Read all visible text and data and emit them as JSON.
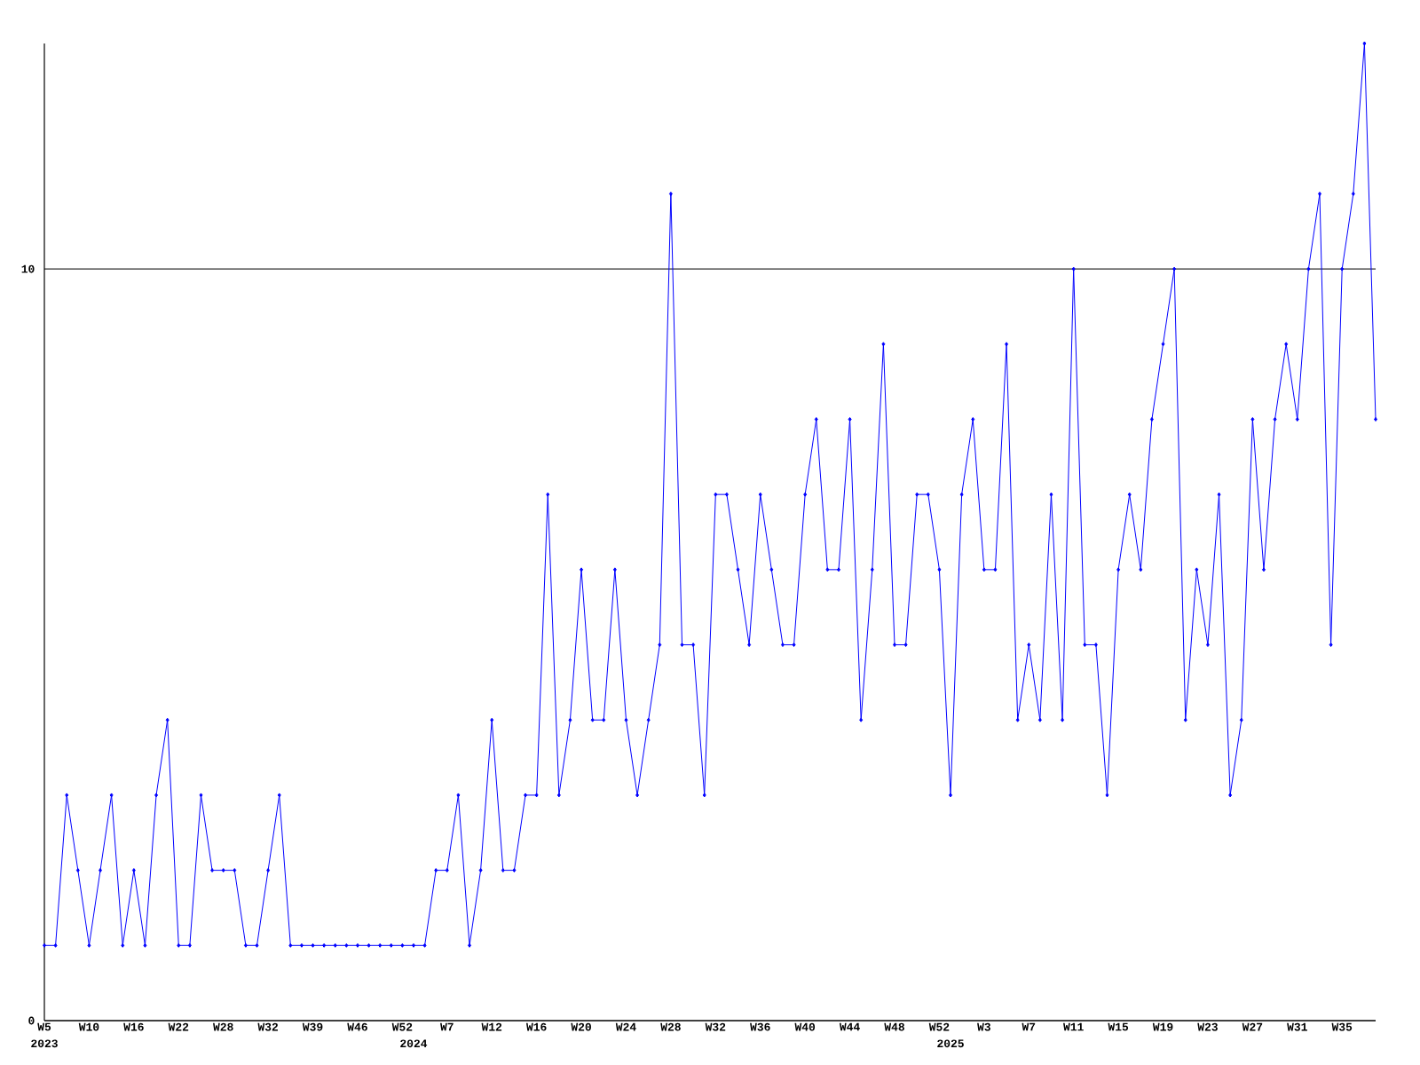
{
  "chart_data": {
    "type": "line",
    "color": "#0000ff",
    "marker": "diamond",
    "line_style": "solid",
    "grid": "y",
    "categories": [
      "W5",
      null,
      null,
      null,
      "W10",
      null,
      null,
      null,
      "W16",
      null,
      null,
      null,
      "W22",
      null,
      null,
      null,
      "W28",
      null,
      null,
      null,
      "W32",
      null,
      null,
      null,
      "W39",
      null,
      null,
      null,
      "W46",
      null,
      null,
      null,
      "W52",
      null,
      null,
      null,
      "W7",
      null,
      null,
      null,
      "W12",
      null,
      null,
      null,
      "W16",
      null,
      null,
      null,
      "W20",
      null,
      null,
      null,
      "W24",
      null,
      null,
      null,
      "W28",
      null,
      null,
      null,
      "W32",
      null,
      null,
      null,
      "W36",
      null,
      null,
      null,
      "W40",
      null,
      null,
      null,
      "W44",
      null,
      null,
      null,
      "W48",
      null,
      null,
      null,
      "W52",
      null,
      null,
      null,
      "W3",
      null,
      null,
      null,
      "W7",
      null,
      null,
      null,
      "W11",
      null,
      null,
      null,
      "W15",
      null,
      null,
      null,
      "W19",
      null,
      null,
      null,
      "W23",
      null,
      null,
      null,
      "W27",
      null,
      null,
      null,
      "W31",
      null,
      null,
      null,
      "W35",
      null,
      null,
      null
    ],
    "values": [
      1,
      1,
      3,
      2,
      1,
      2,
      3,
      1,
      2,
      1,
      3,
      4,
      1,
      1,
      3,
      2,
      2,
      2,
      1,
      1,
      2,
      3,
      1,
      1,
      1,
      1,
      1,
      1,
      1,
      1,
      1,
      1,
      1,
      1,
      1,
      2,
      2,
      3,
      1,
      2,
      4,
      2,
      2,
      3,
      3,
      7,
      3,
      4,
      6,
      4,
      4,
      6,
      4,
      3,
      4,
      5,
      11,
      5,
      5,
      3,
      7,
      7,
      6,
      5,
      7,
      6,
      5,
      5,
      7,
      8,
      6,
      6,
      8,
      4,
      6,
      9,
      5,
      5,
      7,
      7,
      6,
      3,
      7,
      8,
      6,
      6,
      9,
      4,
      5,
      4,
      7,
      4,
      10,
      5,
      5,
      3,
      6,
      7,
      6,
      8,
      9,
      10,
      4,
      6,
      5,
      7,
      3,
      4,
      8,
      6,
      8,
      9,
      8,
      10,
      11,
      5,
      10,
      11,
      13,
      8
    ],
    "annotations": [
      "2023",
      "2024",
      "2025"
    ],
    "ylim": [
      0,
      13
    ],
    "yticks": [
      0,
      10
    ]
  }
}
